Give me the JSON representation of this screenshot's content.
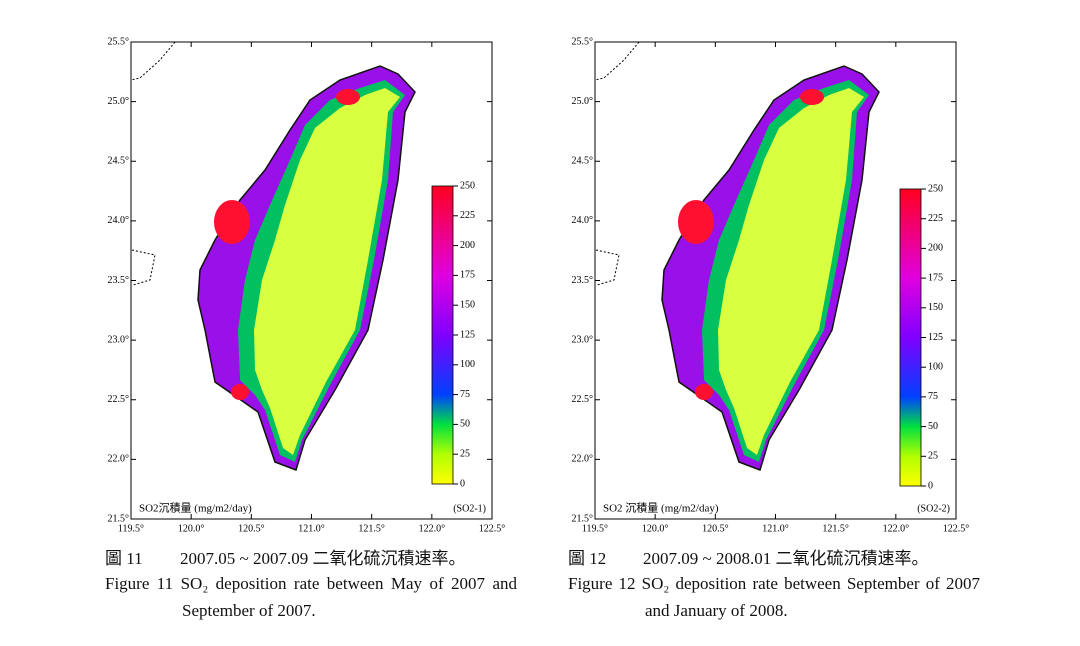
{
  "figures": [
    {
      "x_ticks": [
        "119.5°",
        "120.0°",
        "120.5°",
        "121.0°",
        "121.5°",
        "122.0°",
        "122.5°"
      ],
      "y_ticks": [
        "25.5°",
        "25.0°",
        "24.5°",
        "24.0°",
        "23.5°",
        "23.0°",
        "22.5°",
        "22.0°",
        "21.5°"
      ],
      "colorbar_ticks": [
        "250",
        "225",
        "200",
        "175",
        "150",
        "125",
        "100",
        "75",
        "50",
        "25",
        "0"
      ],
      "unit_label": "SO2沉積量 (mg/m2/day)",
      "code": "(SO2-1)",
      "caption_number": "圖 11",
      "caption_zh": "2007.05 ~ 2007.09 二氧化硫沉積速率。",
      "caption_en": "Figure 11 SO₂ deposition rate between May of 2007 and September of 2007."
    },
    {
      "x_ticks": [
        "119.5°",
        "120.0°",
        "120.5°",
        "121.0°",
        "121.5°",
        "122.0°",
        "122.5°"
      ],
      "y_ticks": [
        "25.5°",
        "25.0°",
        "24.5°",
        "24.0°",
        "23.5°",
        "23.0°",
        "22.5°",
        "22.0°",
        "21.5°"
      ],
      "colorbar_ticks": [
        "250",
        "225",
        "200",
        "175",
        "150",
        "125",
        "100",
        "75",
        "50",
        "25",
        "0"
      ],
      "unit_label": "SO2 沉積量 (mg/m2/day)",
      "code": "(SO2-2)",
      "caption_number": "圖 12",
      "caption_zh": "2007.09 ~ 2008.01 二氧化硫沉積速率。",
      "caption_en": "Figure 12 SO₂ deposition rate between September of 2007 and January of 2008."
    }
  ]
}
